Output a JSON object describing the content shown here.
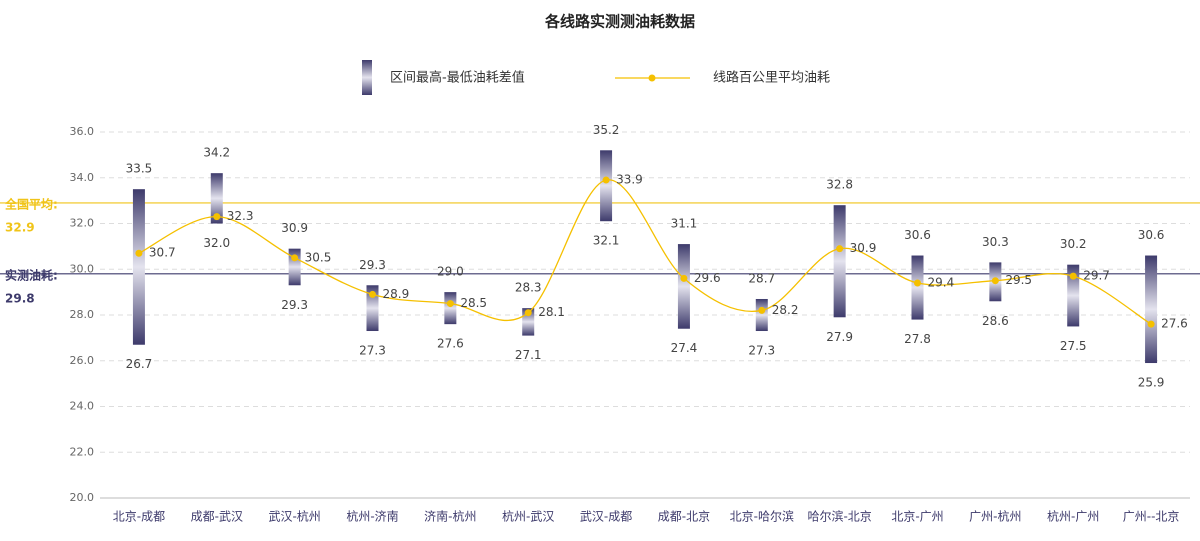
{
  "chart_data": {
    "type": "bar",
    "title": "各线路实测测油耗数据",
    "categories": [
      "北京-成都",
      "成都-武汉",
      "武汉-杭州",
      "杭州-济南",
      "济南-杭州",
      "杭州-武汉",
      "武汉-成都",
      "成都-北京",
      "北京-哈尔滨",
      "哈尔滨-北京",
      "北京-广州",
      "广州-杭州",
      "杭州-广州",
      "广州--北京"
    ],
    "series": [
      {
        "name": "区间最高-最低油耗差值",
        "type": "range",
        "color": "#3d3a6b",
        "low": [
          26.7,
          32.0,
          29.3,
          27.3,
          27.6,
          27.1,
          32.1,
          27.4,
          27.3,
          27.9,
          27.8,
          28.6,
          27.5,
          25.9
        ],
        "low_labels": [
          "26.7",
          "32.0",
          "29.3",
          "27.3",
          "27.6",
          "27.1",
          "32.1",
          "27.4",
          "27.3",
          "27.9",
          "27.8",
          "28.6",
          "27.5",
          "25.9"
        ],
        "high": [
          33.5,
          34.2,
          30.9,
          29.3,
          29.0,
          28.3,
          35.2,
          31.1,
          28.7,
          32.8,
          30.6,
          30.3,
          30.2,
          30.6
        ],
        "high_labels": [
          "33.5",
          "34.2",
          "30.9",
          "29.3",
          "29.0",
          "28.3",
          "35.2",
          "31.1",
          "28.7",
          "32.8",
          "30.6",
          "30.3",
          "30.2",
          "30.6"
        ]
      },
      {
        "name": "线路百公里平均油耗",
        "type": "line",
        "color": "#f5c000",
        "values": [
          30.7,
          32.3,
          30.5,
          28.9,
          28.5,
          28.1,
          33.9,
          29.6,
          28.2,
          30.9,
          29.4,
          29.5,
          29.7,
          27.6
        ]
      }
    ],
    "reference_lines": [
      {
        "label": "全国平均:",
        "value": 32.9,
        "color": "#f0c419"
      },
      {
        "label": "实测油耗:",
        "value": 29.8,
        "color": "#3d3a6b"
      }
    ],
    "ylim": [
      20,
      36
    ],
    "yticks": [
      {
        "value": 20,
        "label": "20.0"
      },
      {
        "value": 22,
        "label": "22.0"
      },
      {
        "value": 24,
        "label": "24.0"
      },
      {
        "value": 26,
        "label": "26.0"
      },
      {
        "value": 28,
        "label": "28.0"
      },
      {
        "value": 30,
        "label": "30.0"
      },
      {
        "value": 32,
        "label": "32.0"
      },
      {
        "value": 34,
        "label": "34.0"
      },
      {
        "value": 36,
        "label": "36.0"
      }
    ],
    "grid": true
  }
}
